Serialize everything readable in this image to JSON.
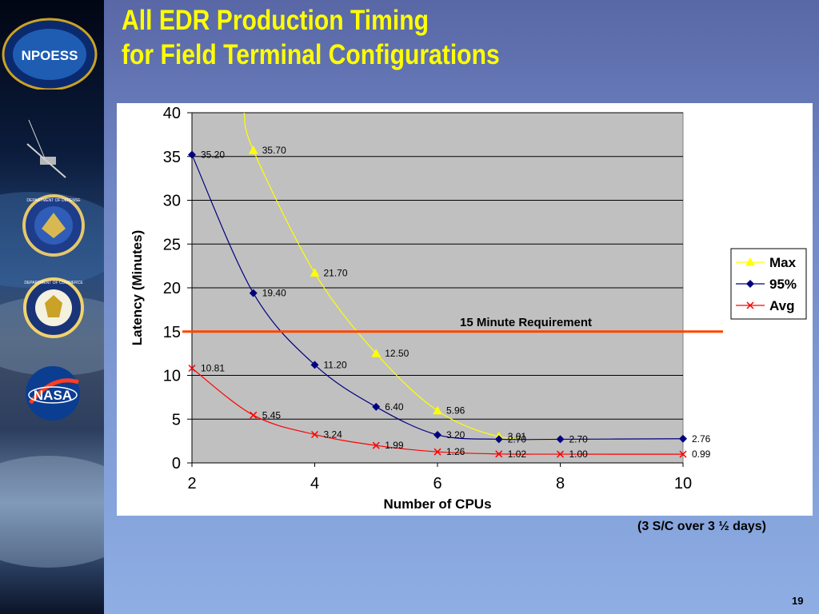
{
  "slide": {
    "title_line1": "All EDR Production Timing",
    "title_line2": "for Field Terminal Configurations",
    "footnote": "(3 S/C over 3 ½ days)",
    "page_number": "19"
  },
  "logos": {
    "npoess": "NPOESS",
    "dod": "DEPARTMENT OF DEFENSE",
    "doc": "DEPARTMENT OF COMMERCE",
    "nasa": "NASA"
  },
  "colors": {
    "title": "#ffff00",
    "max": "#ffff00",
    "p95": "#000080",
    "avg": "#ff0000",
    "requirement": "#ff4500",
    "plot_bg": "#c0c0c0"
  },
  "chart_data": {
    "type": "line",
    "xlabel": "Number of CPUs",
    "ylabel": "Latency (Minutes)",
    "xlim": [
      2,
      10
    ],
    "ylim": [
      0,
      40
    ],
    "xticks": [
      2,
      4,
      6,
      8,
      10
    ],
    "yticks": [
      0,
      5,
      10,
      15,
      20,
      25,
      30,
      35,
      40
    ],
    "grid": "horizontal",
    "legend_position": "right",
    "requirement": {
      "label": "15 Minute Requirement",
      "value": 15
    },
    "series": [
      {
        "name": "Max",
        "color": "#ffff00",
        "marker": "triangle",
        "x": [
          3,
          4,
          5,
          6,
          7
        ],
        "y": [
          35.7,
          21.7,
          12.5,
          5.96,
          3.01
        ],
        "labels": [
          "35.70",
          "21.70",
          "12.50",
          "5.96",
          "3.01"
        ]
      },
      {
        "name": "95%",
        "color": "#000080",
        "marker": "diamond",
        "x": [
          2,
          3,
          4,
          5,
          6,
          7,
          8,
          10
        ],
        "y": [
          35.2,
          19.4,
          11.2,
          6.4,
          3.2,
          2.7,
          2.7,
          2.76
        ],
        "labels": [
          "35.20",
          "19.40",
          "11.20",
          "6.40",
          "3.20",
          "2.70",
          "2.70",
          "2.76"
        ]
      },
      {
        "name": "Avg",
        "color": "#ff0000",
        "marker": "x",
        "x": [
          2,
          3,
          4,
          5,
          6,
          7,
          8,
          10
        ],
        "y": [
          10.81,
          5.45,
          3.24,
          1.99,
          1.26,
          1.02,
          1.0,
          0.99
        ],
        "labels": [
          "10.81",
          "5.45",
          "3.24",
          "1.99",
          "1.26",
          "1.02",
          "1.00",
          "0.99"
        ]
      }
    ]
  }
}
